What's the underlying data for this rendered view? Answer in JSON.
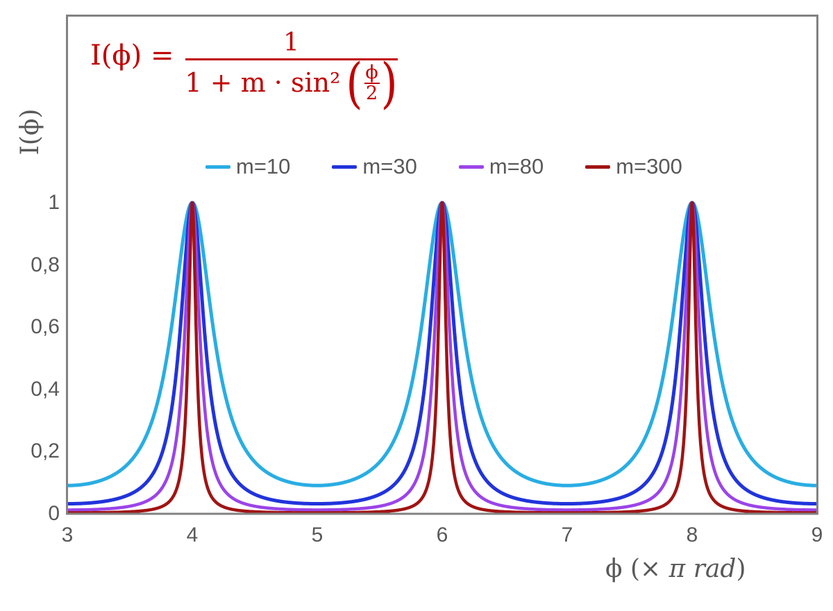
{
  "chart_data": {
    "type": "line",
    "title": "",
    "formula": {
      "as_text": "I(ϕ) = 1 / (1 + m·sin²(ϕ/2))",
      "lhs": "I(ϕ) =",
      "numerator": "1",
      "denominator_prefix": "1 + m · sin²",
      "inner_numerator": "ϕ",
      "inner_denominator": "2",
      "color": "#C00000"
    },
    "xlabel": "ϕ (× π rad)",
    "xlabel_parts": {
      "phi": "ϕ",
      "pre_italic": " (× ",
      "italic": "π rad",
      "post": ")"
    },
    "ylabel": "I(ϕ)",
    "xlim": [
      3,
      9
    ],
    "ylim": [
      0,
      1
    ],
    "x_ticks": [
      3,
      4,
      5,
      6,
      7,
      8,
      9
    ],
    "y_ticks": [
      {
        "value": 1,
        "label": "1"
      },
      {
        "value": 0.8,
        "label": "0,8"
      },
      {
        "value": 0.6,
        "label": "0,6"
      },
      {
        "value": 0.4,
        "label": "0,4"
      },
      {
        "value": 0.2,
        "label": "0,2"
      },
      {
        "value": 0,
        "label": "0"
      }
    ],
    "grid": false,
    "legend_position": "top-center",
    "x_axis_units": "multiples of π rad; I(x) = 1 / (1 + m·sin²(x·π/2))",
    "peaks_at_x": [
      4,
      6,
      8
    ],
    "peak_value": 1,
    "series": [
      {
        "name": "m=10",
        "m": 10,
        "color": "#29ADE3",
        "stroke_width": 5,
        "min_value": 0.0909
      },
      {
        "name": "m=30",
        "m": 30,
        "color": "#2134DB",
        "stroke_width": 5,
        "min_value": 0.0323
      },
      {
        "name": "m=80",
        "m": 80,
        "color": "#9B44E8",
        "stroke_width": 4.5,
        "min_value": 0.0123
      },
      {
        "name": "m=300",
        "m": 300,
        "color": "#A01414",
        "stroke_width": 4.5,
        "min_value": 0.0033
      }
    ],
    "key_points": {
      "x": [
        3,
        3.5,
        4,
        4.5,
        5,
        5.5,
        6,
        6.5,
        7,
        7.5,
        8,
        8.5,
        9
      ],
      "m=10": [
        0.091,
        0.167,
        1.0,
        0.167,
        0.091,
        0.167,
        1.0,
        0.167,
        0.091,
        0.167,
        1.0,
        0.167,
        0.091
      ],
      "m=30": [
        0.032,
        0.063,
        1.0,
        0.063,
        0.032,
        0.063,
        1.0,
        0.063,
        0.032,
        0.063,
        1.0,
        0.063,
        0.032
      ],
      "m=80": [
        0.012,
        0.024,
        1.0,
        0.024,
        0.012,
        0.024,
        1.0,
        0.024,
        0.012,
        0.024,
        1.0,
        0.024,
        0.012
      ],
      "m=300": [
        0.003,
        0.007,
        1.0,
        0.007,
        0.003,
        0.007,
        1.0,
        0.007,
        0.003,
        0.007,
        1.0,
        0.007,
        0.003
      ]
    },
    "colors": {
      "axis_frame": "#828282",
      "text": "#595959",
      "background": "#FFFFFF"
    }
  }
}
